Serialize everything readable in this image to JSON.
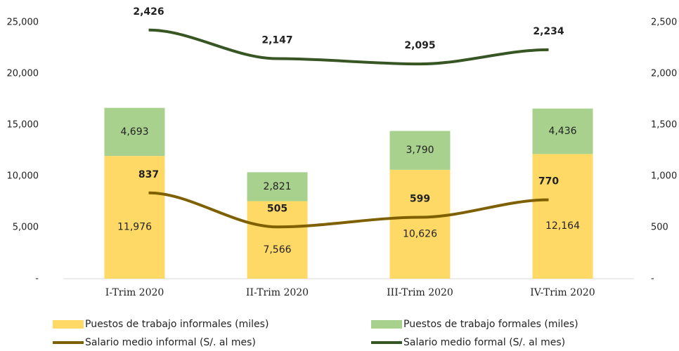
{
  "chart_data": {
    "type": "bar",
    "categories": [
      "I-Trim 2020",
      "II-Trim 2020",
      "III-Trim 2020",
      "IV-Trim 2020"
    ],
    "series": [
      {
        "name": "Puestos de trabajo informales (miles)",
        "color": "#ffd966",
        "type": "bar",
        "values": [
          11976,
          7566,
          10626,
          12164
        ],
        "value_labels": [
          "11,976",
          "7,566",
          "10,626",
          "12,164"
        ]
      },
      {
        "name": "Puestos de trabajo formales (miles)",
        "color": "#a9d18e",
        "type": "bar",
        "values": [
          4693,
          2821,
          3790,
          4436
        ],
        "value_labels": [
          "4,693",
          "2,821",
          "3,790",
          "4,436"
        ]
      },
      {
        "name": "Salario medio informal (S/. al mes)",
        "color": "#7f6000",
        "type": "line",
        "axis": "y2",
        "values": [
          837,
          505,
          599,
          770
        ]
      },
      {
        "name": "Salario medio formal (S/. al mes)",
        "color": "#375623",
        "type": "line",
        "axis": "y2",
        "values": [
          2426,
          2147,
          2095,
          2234
        ],
        "value_labels": [
          "2,426",
          "2,147",
          "2,095",
          "2,234"
        ]
      }
    ],
    "ylim": [
      0,
      25000
    ],
    "yticks": [
      {
        "value": 0,
        "label": "-"
      },
      {
        "value": 5000,
        "label": "5,000"
      },
      {
        "value": 10000,
        "label": "10,000"
      },
      {
        "value": 15000,
        "label": "15,000"
      },
      {
        "value": 20000,
        "label": "20,000"
      },
      {
        "value": 25000,
        "label": "25,000"
      }
    ],
    "y2lim": [
      0,
      2500
    ],
    "y2ticks": [
      {
        "value": 0,
        "label": "-"
      },
      500,
      {
        "value": 1000,
        "label": "1,000"
      },
      {
        "value": 1500,
        "label": "1,500"
      },
      {
        "value": 2000,
        "label": "2,000"
      },
      {
        "value": 2500,
        "label": "2,500"
      }
    ],
    "grid": false
  }
}
